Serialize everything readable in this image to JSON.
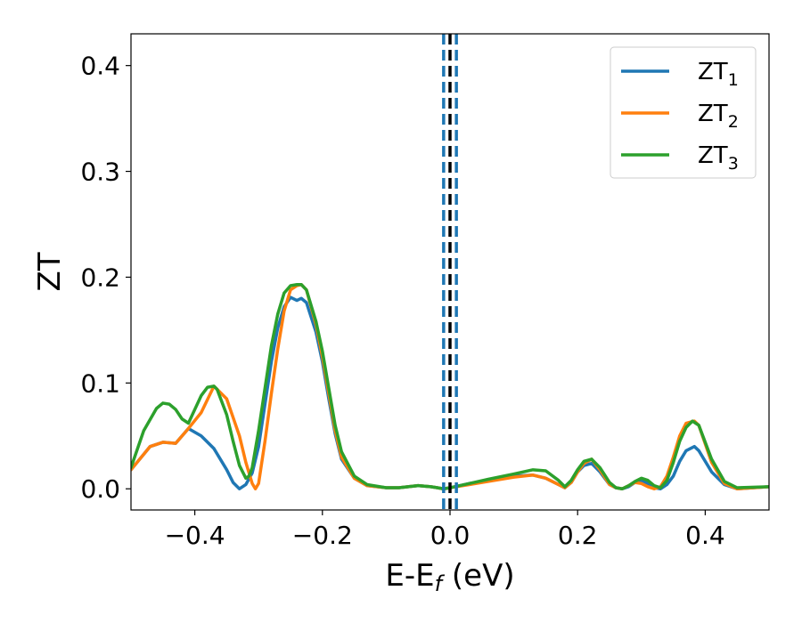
{
  "chart_data": {
    "type": "line",
    "xlabel": "E-E",
    "xlabel_sub": "f",
    "xlabel_unit": " (eV)",
    "ylabel": "ZT",
    "xlim": [
      -0.5,
      0.5
    ],
    "ylim": [
      -0.02,
      0.43
    ],
    "xticks": [
      -0.4,
      -0.2,
      0.0,
      0.2,
      0.4
    ],
    "xtick_labels": [
      "−0.4",
      "−0.2",
      "0.0",
      "0.2",
      "0.4"
    ],
    "yticks": [
      0.0,
      0.1,
      0.2,
      0.3,
      0.4
    ],
    "ytick_labels": [
      "0.0",
      "0.1",
      "0.2",
      "0.3",
      "0.4"
    ],
    "grid": false,
    "legend_placement": "top-right",
    "vlines": [
      {
        "x": -0.01,
        "style": "dashed",
        "color": "#1f77b4"
      },
      {
        "x": 0.0,
        "style": "dashed",
        "color": "#000000"
      },
      {
        "x": 0.01,
        "style": "dashed",
        "color": "#1f77b4"
      }
    ],
    "series": [
      {
        "name": "ZT",
        "name_sub": "1",
        "color": "#1f77b4",
        "x": [
          -0.5,
          -0.47,
          -0.45,
          -0.43,
          -0.41,
          -0.39,
          -0.37,
          -0.35,
          -0.34,
          -0.33,
          -0.32,
          -0.31,
          -0.3,
          -0.29,
          -0.28,
          -0.27,
          -0.26,
          -0.25,
          -0.24,
          -0.233,
          -0.225,
          -0.21,
          -0.2,
          -0.19,
          -0.18,
          -0.17,
          -0.15,
          -0.13,
          -0.1,
          -0.08,
          -0.05,
          -0.03,
          -0.02,
          -0.01,
          0.0,
          0.03,
          0.06,
          0.1,
          0.13,
          0.15,
          0.17,
          0.18,
          0.19,
          0.2,
          0.21,
          0.222,
          0.235,
          0.25,
          0.26,
          0.27,
          0.28,
          0.29,
          0.3,
          0.31,
          0.32,
          0.33,
          0.34,
          0.35,
          0.36,
          0.37,
          0.383,
          0.39,
          0.41,
          0.43,
          0.45,
          0.5
        ],
        "y": [
          0.018,
          0.04,
          0.044,
          0.043,
          0.057,
          0.05,
          0.038,
          0.018,
          0.006,
          0.0,
          0.004,
          0.015,
          0.04,
          0.08,
          0.12,
          0.152,
          0.172,
          0.181,
          0.178,
          0.18,
          0.176,
          0.148,
          0.12,
          0.085,
          0.052,
          0.028,
          0.01,
          0.003,
          0.001,
          0.001,
          0.003,
          0.002,
          0.001,
          0.0,
          0.001,
          0.005,
          0.008,
          0.012,
          0.013,
          0.01,
          0.004,
          0.001,
          0.006,
          0.016,
          0.022,
          0.024,
          0.016,
          0.004,
          0.001,
          0.0,
          0.002,
          0.006,
          0.008,
          0.005,
          0.001,
          0.0,
          0.004,
          0.012,
          0.026,
          0.036,
          0.04,
          0.036,
          0.016,
          0.004,
          0.0,
          0.002
        ]
      },
      {
        "name": "ZT",
        "name_sub": "2",
        "color": "#ff7f0e",
        "x": [
          -0.5,
          -0.47,
          -0.45,
          -0.43,
          -0.41,
          -0.39,
          -0.37,
          -0.35,
          -0.33,
          -0.32,
          -0.31,
          -0.305,
          -0.3,
          -0.29,
          -0.28,
          -0.27,
          -0.26,
          -0.25,
          -0.24,
          -0.233,
          -0.225,
          -0.21,
          -0.2,
          -0.19,
          -0.18,
          -0.17,
          -0.15,
          -0.13,
          -0.1,
          -0.08,
          -0.05,
          -0.03,
          -0.02,
          -0.01,
          0.0,
          0.03,
          0.06,
          0.1,
          0.13,
          0.15,
          0.17,
          0.18,
          0.19,
          0.2,
          0.21,
          0.222,
          0.235,
          0.25,
          0.26,
          0.27,
          0.28,
          0.29,
          0.3,
          0.31,
          0.32,
          0.33,
          0.34,
          0.35,
          0.36,
          0.37,
          0.383,
          0.39,
          0.41,
          0.43,
          0.45,
          0.5
        ],
        "y": [
          0.018,
          0.04,
          0.044,
          0.043,
          0.057,
          0.072,
          0.097,
          0.085,
          0.05,
          0.025,
          0.005,
          0.0,
          0.005,
          0.045,
          0.09,
          0.132,
          0.168,
          0.188,
          0.192,
          0.193,
          0.188,
          0.155,
          0.125,
          0.09,
          0.055,
          0.03,
          0.01,
          0.003,
          0.001,
          0.001,
          0.003,
          0.002,
          0.001,
          0.0,
          0.001,
          0.004,
          0.007,
          0.011,
          0.013,
          0.01,
          0.004,
          0.001,
          0.006,
          0.016,
          0.024,
          0.028,
          0.018,
          0.004,
          0.001,
          0.0,
          0.003,
          0.006,
          0.005,
          0.002,
          0.0,
          0.002,
          0.012,
          0.03,
          0.05,
          0.062,
          0.064,
          0.06,
          0.025,
          0.005,
          0.0,
          0.002
        ]
      },
      {
        "name": "ZT",
        "name_sub": "3",
        "color": "#2ca02c",
        "x": [
          -0.5,
          -0.48,
          -0.46,
          -0.45,
          -0.44,
          -0.43,
          -0.42,
          -0.41,
          -0.4,
          -0.39,
          -0.38,
          -0.37,
          -0.365,
          -0.35,
          -0.34,
          -0.33,
          -0.32,
          -0.315,
          -0.31,
          -0.3,
          -0.29,
          -0.28,
          -0.27,
          -0.26,
          -0.25,
          -0.24,
          -0.233,
          -0.225,
          -0.21,
          -0.2,
          -0.19,
          -0.18,
          -0.17,
          -0.15,
          -0.13,
          -0.1,
          -0.08,
          -0.05,
          -0.03,
          -0.02,
          -0.01,
          0.0,
          0.03,
          0.06,
          0.1,
          0.13,
          0.15,
          0.17,
          0.18,
          0.19,
          0.2,
          0.21,
          0.222,
          0.235,
          0.25,
          0.26,
          0.27,
          0.28,
          0.29,
          0.3,
          0.31,
          0.32,
          0.33,
          0.34,
          0.35,
          0.36,
          0.37,
          0.38,
          0.39,
          0.41,
          0.43,
          0.45,
          0.5
        ],
        "y": [
          0.02,
          0.055,
          0.076,
          0.081,
          0.08,
          0.075,
          0.066,
          0.062,
          0.075,
          0.088,
          0.096,
          0.097,
          0.094,
          0.07,
          0.045,
          0.022,
          0.01,
          0.012,
          0.02,
          0.055,
          0.095,
          0.135,
          0.165,
          0.185,
          0.192,
          0.193,
          0.193,
          0.188,
          0.158,
          0.13,
          0.095,
          0.06,
          0.035,
          0.012,
          0.004,
          0.001,
          0.001,
          0.003,
          0.002,
          0.001,
          0.0,
          0.001,
          0.005,
          0.009,
          0.014,
          0.018,
          0.017,
          0.008,
          0.002,
          0.008,
          0.018,
          0.026,
          0.028,
          0.02,
          0.006,
          0.001,
          0.0,
          0.003,
          0.007,
          0.01,
          0.008,
          0.003,
          0.001,
          0.008,
          0.025,
          0.045,
          0.058,
          0.064,
          0.06,
          0.028,
          0.007,
          0.001,
          0.002
        ]
      }
    ]
  }
}
